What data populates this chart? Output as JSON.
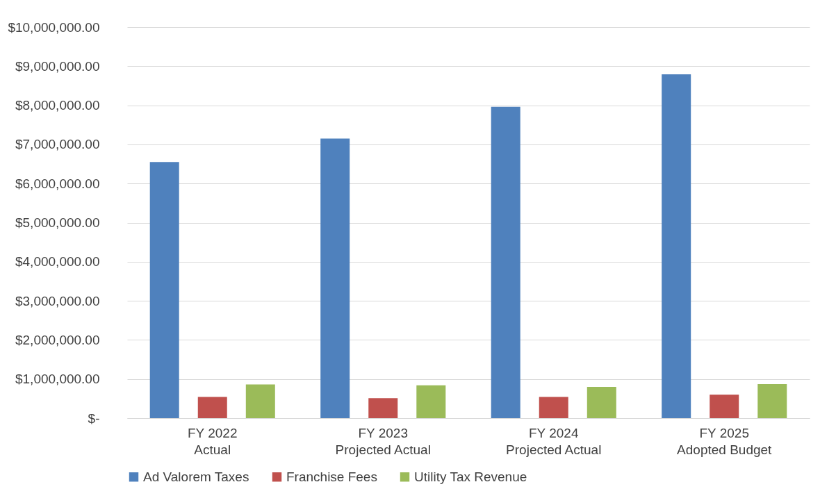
{
  "chart_data": {
    "type": "bar",
    "categories": [
      "FY 2022\nActual",
      "FY 2023\nProjected Actual",
      "FY 2024\nProjected Actual",
      "FY 2025\nAdopted Budget"
    ],
    "series": [
      {
        "name": "Ad Valorem Taxes",
        "color": "#4f81bd",
        "values": [
          6550000,
          7150000,
          7960000,
          8790000
        ]
      },
      {
        "name": "Franchise Fees",
        "color": "#c0504d",
        "values": [
          540000,
          510000,
          540000,
          600000
        ]
      },
      {
        "name": "Utility Tax Revenue",
        "color": "#9bbb59",
        "values": [
          860000,
          840000,
          800000,
          870000
        ]
      }
    ],
    "ylim": [
      0,
      10000000
    ],
    "yticks": [
      {
        "value": 0,
        "label": "$-"
      },
      {
        "value": 1000000,
        "label": "$1,000,000.00"
      },
      {
        "value": 2000000,
        "label": "$2,000,000.00"
      },
      {
        "value": 3000000,
        "label": "$3,000,000.00"
      },
      {
        "value": 4000000,
        "label": "$4,000,000.00"
      },
      {
        "value": 5000000,
        "label": "$5,000,000.00"
      },
      {
        "value": 6000000,
        "label": "$6,000,000.00"
      },
      {
        "value": 7000000,
        "label": "$7,000,000.00"
      },
      {
        "value": 8000000,
        "label": "$8,000,000.00"
      },
      {
        "value": 9000000,
        "label": "$9,000,000.00"
      },
      {
        "value": 10000000,
        "label": "$10,000,000.00"
      }
    ],
    "grid": "y",
    "legend": "bottom"
  }
}
